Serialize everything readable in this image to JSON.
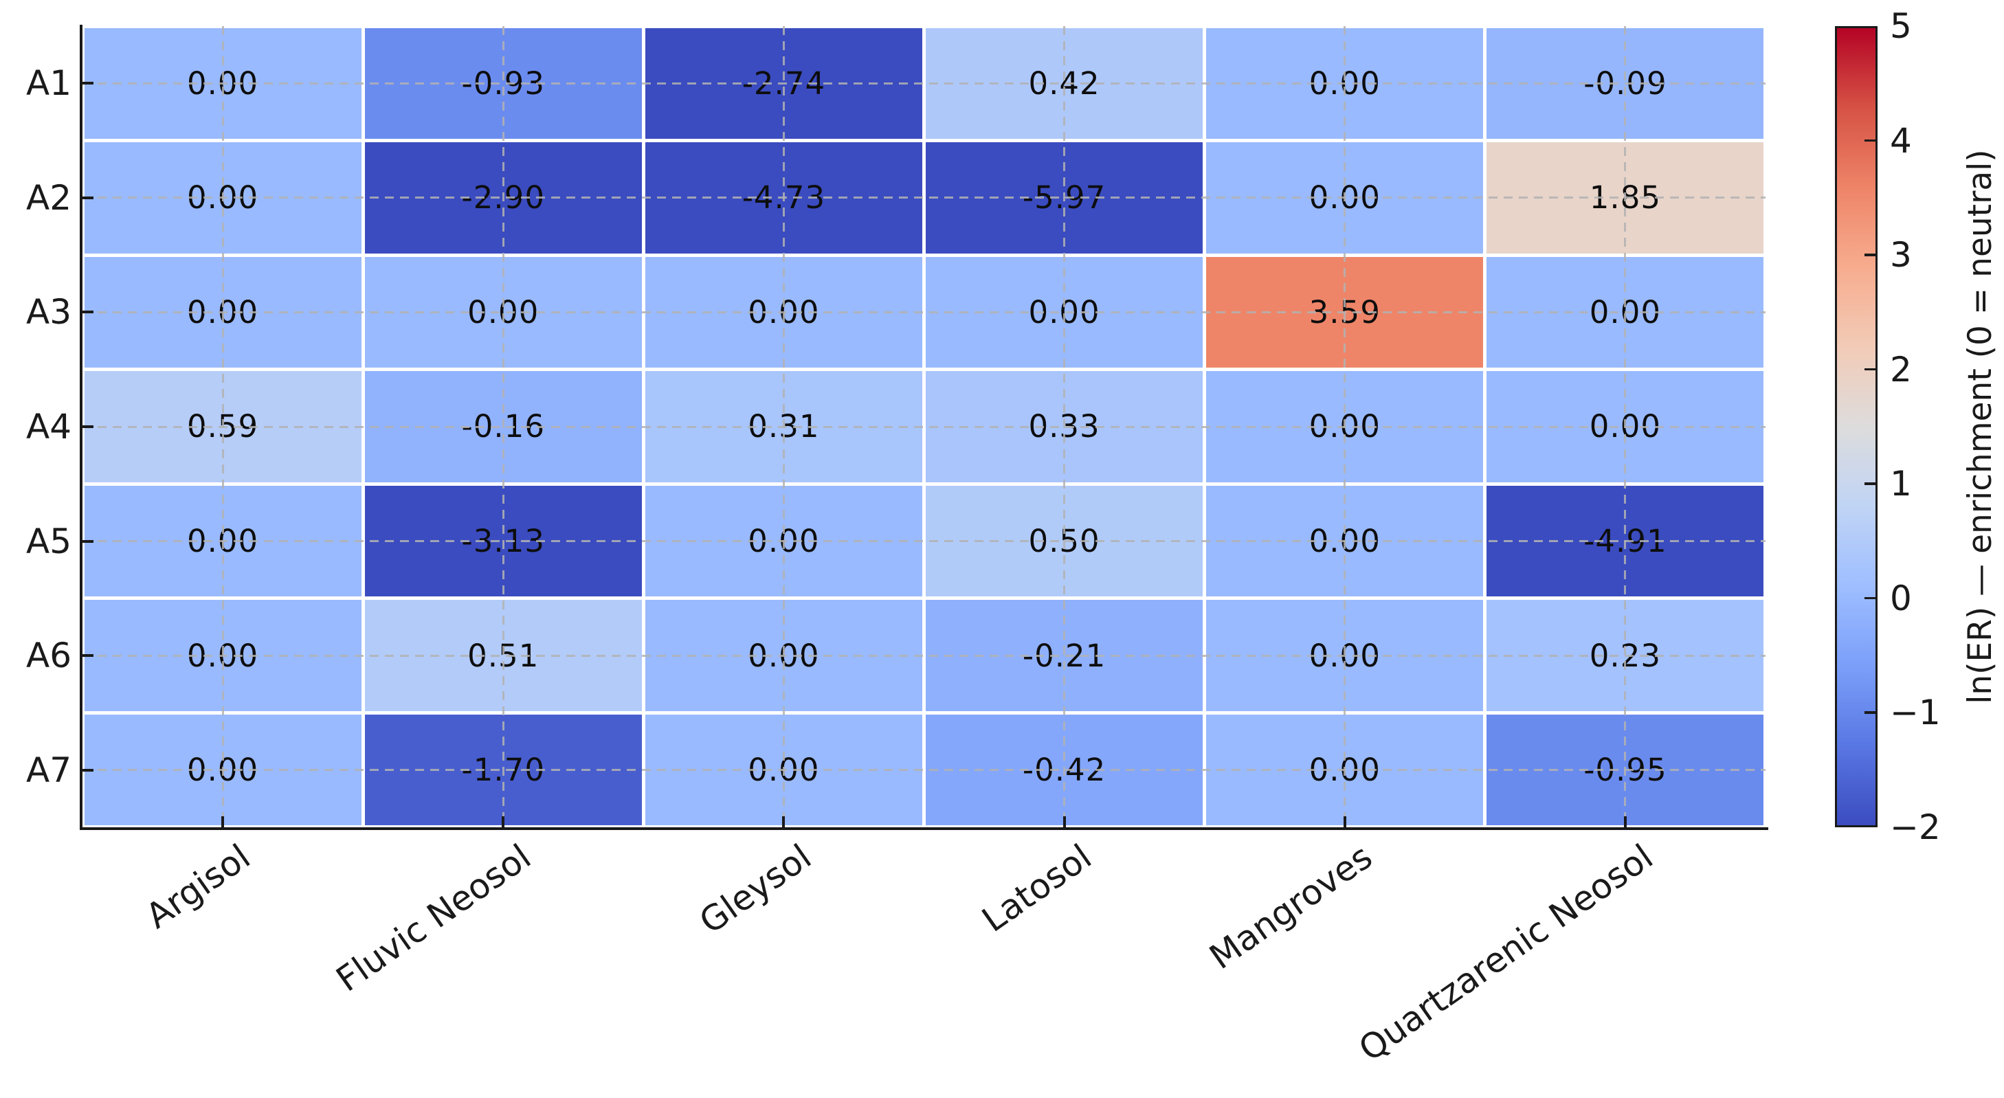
{
  "chart_data": {
    "type": "heatmap",
    "title": "",
    "rows": [
      "A1",
      "A2",
      "A3",
      "A4",
      "A5",
      "A6",
      "A7"
    ],
    "columns": [
      "Argisol",
      "Fluvic Neosol",
      "Gleysol",
      "Latosol",
      "Mangroves",
      "Quartzarenic Neosol"
    ],
    "values": [
      [
        0.0,
        -0.93,
        -2.74,
        0.42,
        0.0,
        -0.09
      ],
      [
        0.0,
        -2.9,
        -4.73,
        -5.97,
        0.0,
        1.85
      ],
      [
        0.0,
        0.0,
        0.0,
        0.0,
        3.59,
        0.0
      ],
      [
        0.59,
        -0.16,
        0.31,
        0.33,
        0.0,
        0.0
      ],
      [
        0.0,
        -3.13,
        0.0,
        0.5,
        0.0,
        -4.91
      ],
      [
        0.0,
        0.51,
        0.0,
        -0.21,
        0.0,
        0.23
      ],
      [
        0.0,
        -1.7,
        0.0,
        -0.42,
        0.0,
        -0.95
      ]
    ],
    "value_decimals": 2,
    "grid": true,
    "legend_position": "right-colorbar",
    "colorbar": {
      "label": "ln(ER) — enrichment (0 = neutral)",
      "vmin": -2,
      "vmax": 5,
      "tick_values": [
        5,
        4,
        3,
        2,
        1,
        0,
        -1,
        -2
      ],
      "tick_labels": [
        "5",
        "4",
        "3",
        "2",
        "1",
        "0",
        "−1",
        "−2"
      ]
    },
    "colormap": {
      "name": "coolwarm",
      "stops": [
        {
          "t": 0.0,
          "color": "#3b4cc0"
        },
        {
          "t": 0.1,
          "color": "#5977e3"
        },
        {
          "t": 0.2,
          "color": "#7b9ff9"
        },
        {
          "t": 0.3,
          "color": "#9ebeff"
        },
        {
          "t": 0.4,
          "color": "#c0d4f5"
        },
        {
          "t": 0.5,
          "color": "#dddcdc"
        },
        {
          "t": 0.6,
          "color": "#f2cbb7"
        },
        {
          "t": 0.7,
          "color": "#f7ac8e"
        },
        {
          "t": 0.8,
          "color": "#ee8468"
        },
        {
          "t": 0.9,
          "color": "#d65244"
        },
        {
          "t": 1.0,
          "color": "#b40426"
        }
      ]
    },
    "styles": {
      "background": "#ffffff",
      "spine_color": "#1a1a1a",
      "annotation_color": "#0d0d0d",
      "gridline_color": "#b0b0b0"
    }
  }
}
